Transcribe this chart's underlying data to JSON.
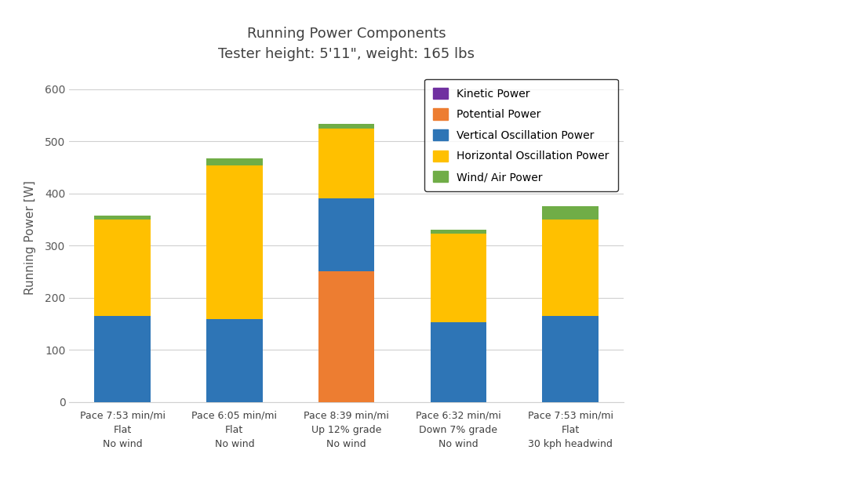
{
  "title_line1": "Running Power Components",
  "title_line2": "Tester height: 5'11\", weight: 165 lbs",
  "ylabel": "Running Power [W]",
  "ylim": [
    0,
    630
  ],
  "yticks": [
    0,
    100,
    200,
    300,
    400,
    500,
    600
  ],
  "categories": [
    "Pace 7:53 min/mi\nFlat\nNo wind",
    "Pace 6:05 min/mi\nFlat\nNo wind",
    "Pace 8:39 min/mi\nUp 12% grade\nNo wind",
    "Pace 6:32 min/mi\nDown 7% grade\nNo wind",
    "Pace 7:53 min/mi\nFlat\n30 kph headwind"
  ],
  "vert_osc": [
    165,
    158,
    0,
    152,
    165
  ],
  "potential": [
    0,
    0,
    250,
    0,
    0
  ],
  "vert_osc2": [
    0,
    0,
    140,
    0,
    0
  ],
  "horiz_osc": [
    185,
    295,
    135,
    170,
    185
  ],
  "wind": [
    8,
    14,
    8,
    8,
    25
  ],
  "color_vert": "#2E75B6",
  "color_pot": "#ED7D31",
  "color_horiz": "#FFC000",
  "color_wind": "#70AD47",
  "color_kinetic": "#7030A0",
  "legend_labels": [
    "Kinetic Power",
    "Potential Power",
    "Vertical Oscillation Power",
    "Horizontal Oscillation Power",
    "Wind/ Air Power"
  ],
  "legend_colors": [
    "#7030A0",
    "#ED7D31",
    "#2E75B6",
    "#FFC000",
    "#70AD47"
  ],
  "background_color": "#FFFFFF",
  "grid_color": "#D0D0D0",
  "bar_width": 0.5
}
